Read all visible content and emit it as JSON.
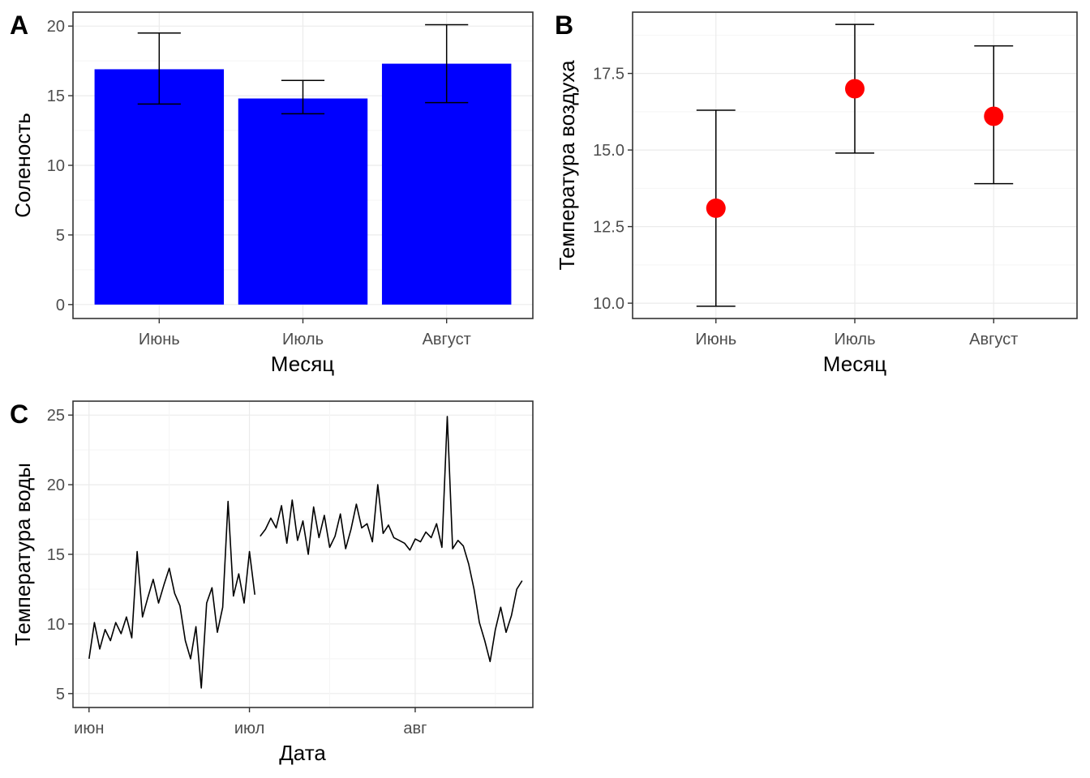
{
  "panels": {
    "A": {
      "tag": "A"
    },
    "B": {
      "tag": "B"
    },
    "C": {
      "tag": "C"
    }
  },
  "colors": {
    "bar": "#0000FF",
    "point": "#FF0000",
    "line": "#000000",
    "grid": "#EBEBEB",
    "tick_text": "#4D4D4D"
  },
  "chart_data": [
    {
      "id": "A",
      "type": "bar",
      "title": "",
      "xlabel": "Месяц",
      "ylabel": "Соленость",
      "categories": [
        "Июнь",
        "Июль",
        "Август"
      ],
      "values": [
        16.9,
        14.8,
        17.3
      ],
      "error_low": [
        14.4,
        13.7,
        14.5
      ],
      "error_high": [
        19.5,
        16.1,
        20.1
      ],
      "ylim": [
        -1,
        21
      ],
      "yticks": [
        0,
        5,
        10,
        15,
        20
      ],
      "ytick_labels": [
        "0",
        "5",
        "10",
        "15",
        "20"
      ],
      "grid": true
    },
    {
      "id": "B",
      "type": "scatter",
      "title": "",
      "xlabel": "Месяц",
      "ylabel": "Температура воздуха",
      "categories": [
        "Июнь",
        "Июль",
        "Август"
      ],
      "values": [
        13.1,
        17.0,
        16.1
      ],
      "error_low": [
        9.9,
        14.9,
        13.9
      ],
      "error_high": [
        16.3,
        19.1,
        18.4
      ],
      "ylim": [
        9.5,
        19.5
      ],
      "yticks": [
        10.0,
        12.5,
        15.0,
        17.5
      ],
      "ytick_labels": [
        "10.0",
        "12.5",
        "15.0",
        "17.5"
      ],
      "grid": true
    },
    {
      "id": "C",
      "type": "line",
      "title": "",
      "xlabel": "Дата",
      "ylabel": "Температура воды",
      "xticks": [
        "2020-06-01",
        "2020-07-01",
        "2020-08-01"
      ],
      "xtick_labels": [
        "июн",
        "июл",
        "авг"
      ],
      "xlim": [
        "2020-05-29",
        "2020-08-23"
      ],
      "ylim": [
        4.0,
        26.0
      ],
      "yticks": [
        5,
        10,
        15,
        20,
        25
      ],
      "ytick_labels": [
        "5",
        "10",
        "15",
        "20",
        "25"
      ],
      "grid": true,
      "series": [
        {
          "x": [
            "2020-06-01",
            "2020-06-02",
            "2020-06-03",
            "2020-06-04",
            "2020-06-05",
            "2020-06-06",
            "2020-06-07",
            "2020-06-08",
            "2020-06-09",
            "2020-06-10",
            "2020-06-11",
            "2020-06-12",
            "2020-06-13",
            "2020-06-14",
            "2020-06-15",
            "2020-06-16",
            "2020-06-17",
            "2020-06-18",
            "2020-06-19",
            "2020-06-20",
            "2020-06-21",
            "2020-06-22",
            "2020-06-23",
            "2020-06-24",
            "2020-06-25",
            "2020-06-26",
            "2020-06-27",
            "2020-06-28",
            "2020-06-29",
            "2020-06-30",
            "2020-07-01",
            "2020-07-02"
          ],
          "y": [
            7.5,
            10.1,
            8.2,
            9.6,
            8.8,
            10.1,
            9.3,
            10.5,
            9.0,
            15.2,
            10.5,
            11.9,
            13.2,
            11.5,
            12.8,
            14.0,
            12.2,
            11.3,
            8.8,
            7.5,
            9.8,
            5.4,
            11.5,
            12.6,
            9.4,
            11.2,
            18.8,
            12.0,
            13.6,
            11.5,
            15.2,
            12.1
          ]
        },
        {
          "x": [
            "2020-07-03",
            "2020-07-04",
            "2020-07-05",
            "2020-07-06",
            "2020-07-07",
            "2020-07-08",
            "2020-07-09",
            "2020-07-10",
            "2020-07-11",
            "2020-07-12",
            "2020-07-13",
            "2020-07-14",
            "2020-07-15",
            "2020-07-16",
            "2020-07-17",
            "2020-07-18",
            "2020-07-19",
            "2020-07-20",
            "2020-07-21",
            "2020-07-22",
            "2020-07-23",
            "2020-07-24",
            "2020-07-25",
            "2020-07-26",
            "2020-07-27",
            "2020-07-28",
            "2020-07-29",
            "2020-07-30",
            "2020-07-31",
            "2020-08-01",
            "2020-08-02",
            "2020-08-03",
            "2020-08-04",
            "2020-08-05",
            "2020-08-06",
            "2020-08-07",
            "2020-08-08",
            "2020-08-09",
            "2020-08-10",
            "2020-08-11",
            "2020-08-12",
            "2020-08-13",
            "2020-08-14",
            "2020-08-15",
            "2020-08-16",
            "2020-08-17",
            "2020-08-18",
            "2020-08-19",
            "2020-08-20",
            "2020-08-21"
          ],
          "y": [
            16.3,
            16.8,
            17.6,
            16.9,
            18.5,
            15.8,
            18.9,
            16.0,
            17.4,
            15.0,
            18.4,
            16.2,
            17.8,
            15.5,
            16.3,
            17.9,
            15.4,
            16.8,
            18.6,
            16.9,
            17.2,
            15.9,
            20.0,
            16.5,
            17.1,
            16.2,
            16.0,
            15.8,
            15.3,
            16.1,
            15.9,
            16.6,
            16.2,
            17.2,
            15.5,
            24.9,
            15.4,
            16.0,
            15.6,
            14.3,
            12.5,
            10.1,
            8.8,
            7.3,
            9.6,
            11.2,
            9.4,
            10.6,
            12.5,
            13.1
          ]
        }
      ]
    }
  ]
}
